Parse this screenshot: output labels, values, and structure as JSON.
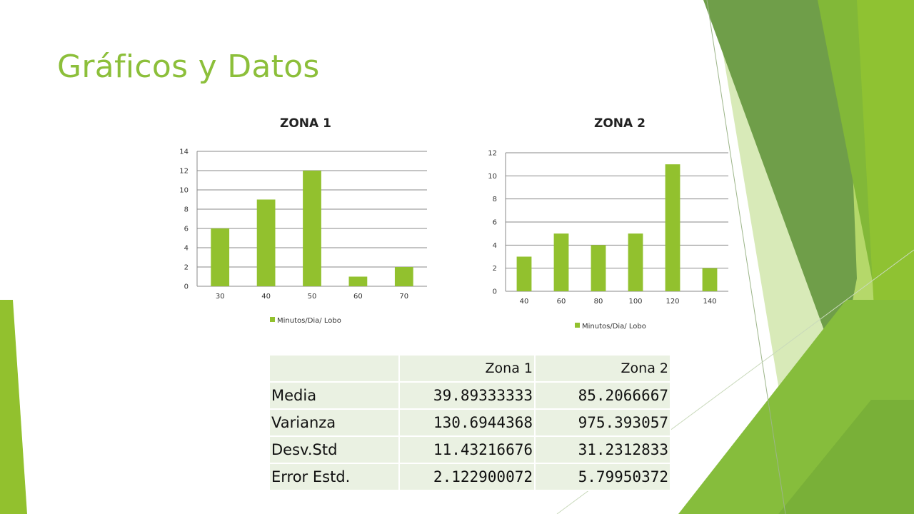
{
  "slide": {
    "title": "Gráficos y Datos"
  },
  "colors": {
    "bar": "#92c12e",
    "title": "#8cbf3a",
    "table_cell": "#eaf1e2"
  },
  "chart_data": [
    {
      "type": "bar",
      "title": "ZONA 1",
      "categories": [
        "30",
        "40",
        "50",
        "60",
        "70"
      ],
      "series": [
        {
          "name": "Minutos/Dia/ Lobo",
          "values": [
            6,
            9,
            12,
            1,
            2
          ]
        }
      ],
      "ylim": [
        0,
        14
      ],
      "yticks": [
        0,
        2,
        4,
        6,
        8,
        10,
        12,
        14
      ],
      "grid": true,
      "legend": "bottom"
    },
    {
      "type": "bar",
      "title": "ZONA 2",
      "categories": [
        "40",
        "60",
        "80",
        "100",
        "120",
        "140"
      ],
      "series": [
        {
          "name": "Minutos/Dia/ Lobo",
          "values": [
            3,
            5,
            4,
            5,
            11,
            2
          ]
        }
      ],
      "ylim": [
        0,
        12
      ],
      "yticks": [
        0,
        2,
        4,
        6,
        8,
        10,
        12
      ],
      "grid": true,
      "legend": "bottom"
    }
  ],
  "table": {
    "headers": [
      "",
      "Zona 1",
      "Zona 2"
    ],
    "rows": [
      [
        "Media",
        "39.89333333",
        "85.2066667"
      ],
      [
        "Varianza",
        "130.6944368",
        "975.393057"
      ],
      [
        "Desv.Std",
        "11.43216676",
        "31.2312833"
      ],
      [
        "Error Estd.",
        "2.122900072",
        "5.79950372"
      ]
    ]
  }
}
